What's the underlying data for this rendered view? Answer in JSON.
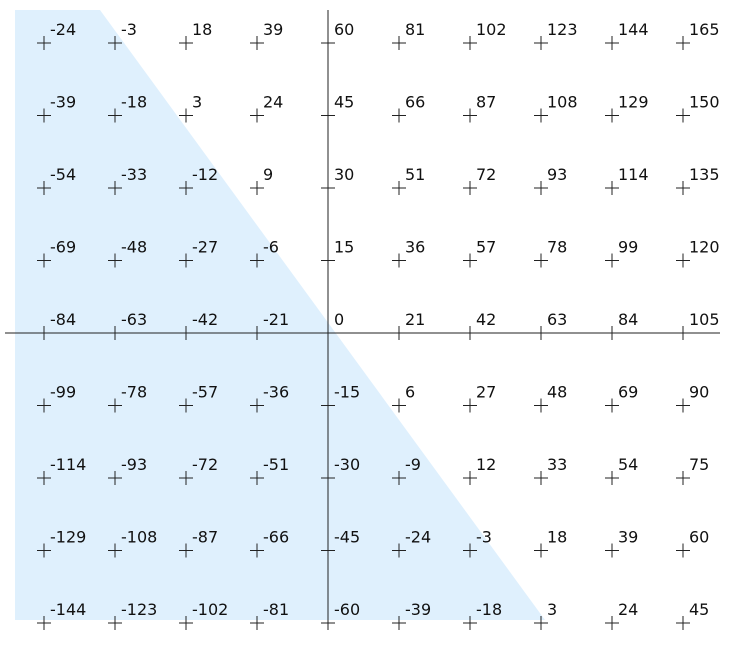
{
  "grid": {
    "rows": [
      [
        -24,
        -3,
        18,
        39,
        60,
        81,
        102,
        123,
        144,
        165
      ],
      [
        -39,
        -18,
        3,
        24,
        45,
        66,
        87,
        108,
        129,
        150
      ],
      [
        -54,
        -33,
        -12,
        9,
        30,
        51,
        72,
        93,
        114,
        135
      ],
      [
        -69,
        -48,
        -27,
        -6,
        15,
        36,
        57,
        78,
        99,
        120
      ],
      [
        -84,
        -63,
        -42,
        -21,
        0,
        21,
        42,
        63,
        84,
        105
      ],
      [
        -99,
        -78,
        -57,
        -36,
        -15,
        6,
        27,
        48,
        69,
        90
      ],
      [
        -114,
        -93,
        -72,
        -51,
        -30,
        -9,
        12,
        33,
        54,
        75
      ],
      [
        -129,
        -108,
        -87,
        -66,
        -45,
        -24,
        -3,
        18,
        39,
        60
      ],
      [
        -144,
        -123,
        -102,
        -81,
        -60,
        -39,
        -18,
        3,
        24,
        45
      ]
    ]
  }
}
